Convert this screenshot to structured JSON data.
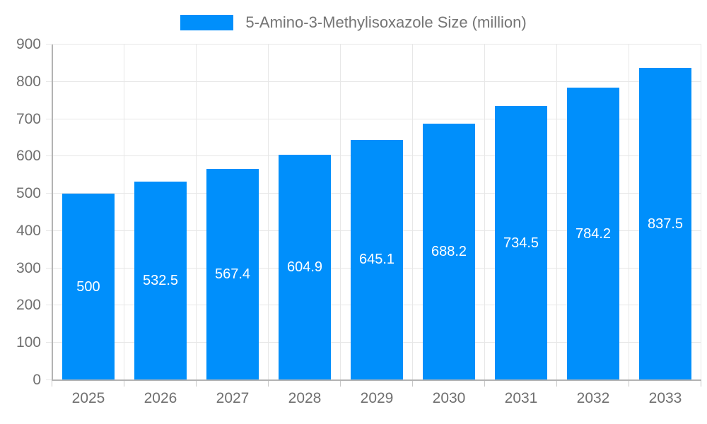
{
  "legend": {
    "label": "5-Amino-3-Methylisoxazole Size (million)"
  },
  "colors": {
    "bar": "#008FFB",
    "grid": "#e7e7e7",
    "axis": "#b3b3b3",
    "tick": "#c7c7c7",
    "axis_label": "#707070",
    "legend_text": "#757575",
    "data_label": "#ffffff",
    "background": "#ffffff"
  },
  "chart_data": {
    "type": "bar",
    "title": "5-Amino-3-Methylisoxazole Size (million)",
    "categories": [
      "2025",
      "2026",
      "2027",
      "2028",
      "2029",
      "2030",
      "2031",
      "2032",
      "2033"
    ],
    "values": [
      500,
      532.5,
      567.4,
      604.9,
      645.1,
      688.2,
      734.5,
      784.2,
      837.5
    ],
    "data_labels": [
      "500",
      "532.5",
      "567.4",
      "604.9",
      "645.1",
      "688.2",
      "734.5",
      "784.2",
      "837.5"
    ],
    "xlabel": "",
    "ylabel": "",
    "ylim": [
      0,
      900
    ],
    "yticks": [
      0,
      100,
      200,
      300,
      400,
      500,
      600,
      700,
      800,
      900
    ],
    "grid": true,
    "legend_position": "top",
    "data_label_position": "inside-center",
    "bar_width_ratio": 0.72
  }
}
